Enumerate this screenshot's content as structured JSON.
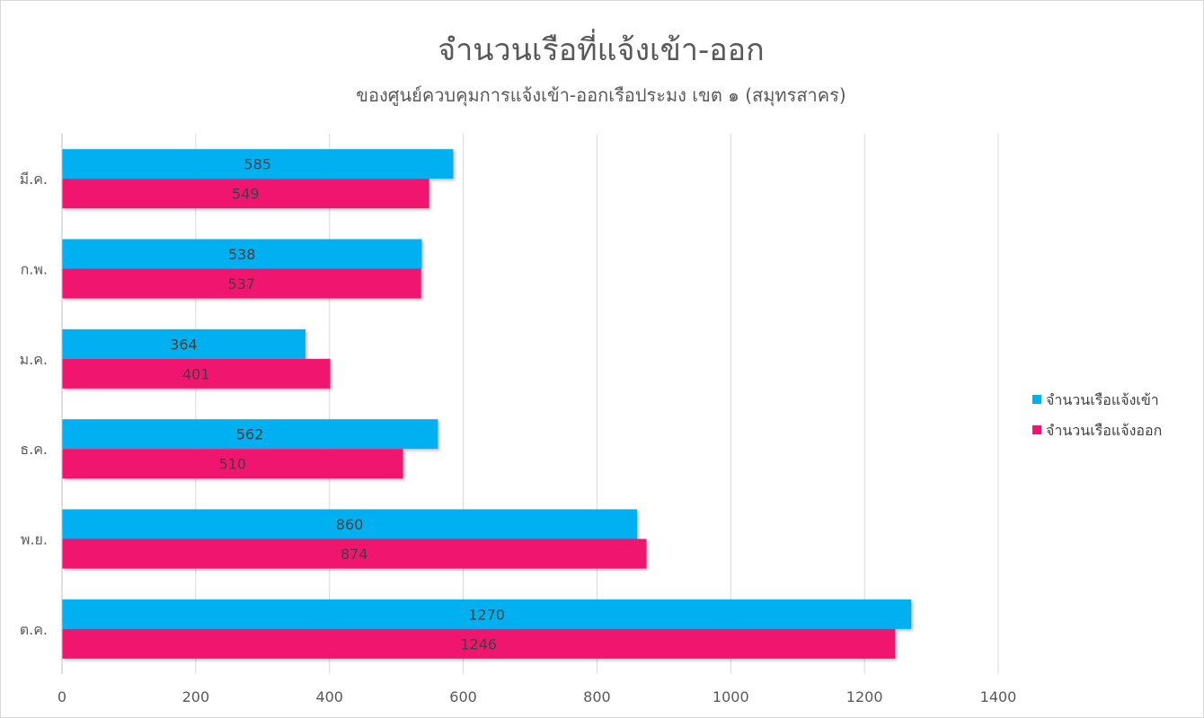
{
  "chart_data": {
    "type": "bar",
    "orientation": "horizontal",
    "title": "จำนวนเรือที่แจ้งเข้า-ออก",
    "subtitle": "ของศูนย์ควบคุมการแจ้งเข้า-ออกเรือประมง เขต ๑ (สมุทรสาคร)",
    "categories": [
      "มี.ค.",
      "ก.พ.",
      "ม.ค.",
      "ธ.ค.",
      "พ.ย.",
      "ต.ค."
    ],
    "series": [
      {
        "name": "จำนวนเรือแจ้งเข้า",
        "color": "#00b0f0",
        "values": [
          585,
          538,
          364,
          562,
          860,
          1270
        ]
      },
      {
        "name": "จำนวนเรือแจ้งออก",
        "color": "#f0136f",
        "values": [
          549,
          537,
          401,
          510,
          874,
          1246
        ]
      }
    ],
    "xlim": [
      0,
      1400
    ],
    "xticks": [
      0,
      200,
      400,
      600,
      800,
      1000,
      1200,
      1400
    ],
    "grid": true,
    "legend_position": "right",
    "data_labels": true
  }
}
